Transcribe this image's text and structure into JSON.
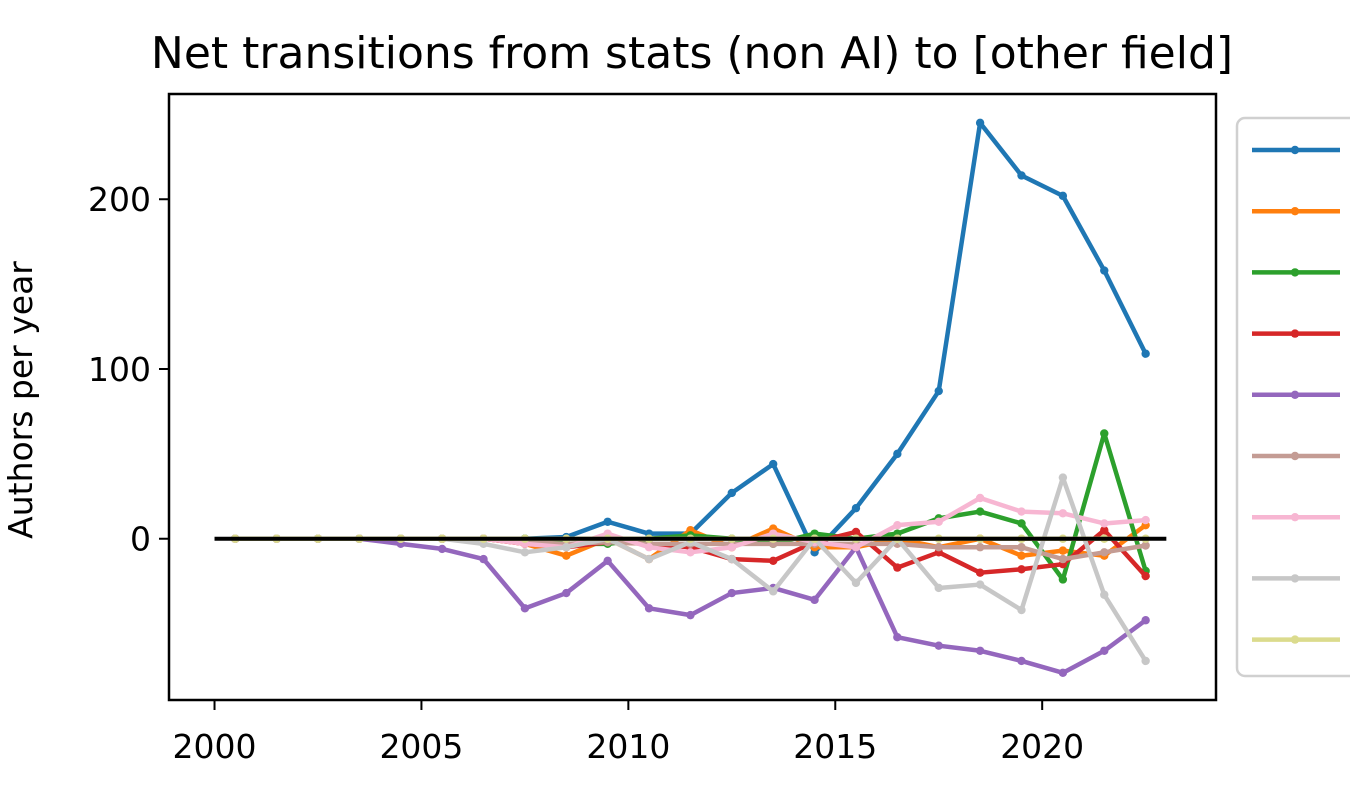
{
  "chart_data": {
    "type": "line",
    "title": "Net transitions from stats (non AI) to [other field]",
    "xlabel": "",
    "ylabel": "Authors per year",
    "xlim": [
      1998.9,
      2024.2
    ],
    "ylim": [
      -95,
      262
    ],
    "xticks": [
      2000,
      2005,
      2010,
      2015,
      2020
    ],
    "yticks": [
      0,
      100,
      200
    ],
    "grid": false,
    "legend": "right",
    "x": [
      2000.5,
      2001.5,
      2002.5,
      2003.5,
      2004.5,
      2005.5,
      2006.5,
      2007.5,
      2008.5,
      2009.5,
      2010.5,
      2011.5,
      2012.5,
      2013.5,
      2014.5,
      2015.5,
      2016.5,
      2017.5,
      2018.5,
      2019.5,
      2020.5,
      2021.5,
      2022.5
    ],
    "zero_line": {
      "x_start": 2000,
      "x_end": 2023,
      "y": 0,
      "color": "#000000"
    },
    "series": [
      {
        "name": "",
        "color": "#1f77b4",
        "values": [
          0,
          0,
          0,
          0,
          0,
          0,
          0,
          0,
          1,
          10,
          3,
          3,
          27,
          44,
          -8,
          18,
          50,
          87,
          245,
          214,
          202,
          158,
          109
        ]
      },
      {
        "name": "",
        "color": "#ff7f0e",
        "values": [
          0,
          0,
          0,
          0,
          0,
          0,
          0,
          -3,
          -10,
          0,
          -12,
          5,
          -5,
          6,
          -5,
          -5,
          0,
          -5,
          0,
          -10,
          -7,
          -10,
          8
        ]
      },
      {
        "name": "",
        "color": "#2ca02c",
        "values": [
          0,
          0,
          0,
          0,
          0,
          0,
          0,
          0,
          -3,
          -3,
          0,
          2,
          0,
          -3,
          3,
          0,
          3,
          12,
          16,
          9,
          -24,
          62,
          -19
        ]
      },
      {
        "name": "",
        "color": "#d62728",
        "values": [
          0,
          0,
          0,
          0,
          0,
          0,
          0,
          -3,
          -5,
          -2,
          -3,
          -5,
          -12,
          -13,
          -2,
          4,
          -17,
          -8,
          -20,
          -18,
          -15,
          5,
          -22
        ]
      },
      {
        "name": "",
        "color": "#9467bd",
        "values": [
          0,
          0,
          0,
          0,
          -3,
          -6,
          -12,
          -41,
          -32,
          -13,
          -41,
          -45,
          -32,
          -29,
          -36,
          -5,
          -58,
          -63,
          -66,
          -72,
          -79,
          -66,
          -48
        ]
      },
      {
        "name": "",
        "color": "#c49c94",
        "values": [
          0,
          0,
          0,
          0,
          0,
          0,
          0,
          -2,
          -3,
          -2,
          -3,
          -3,
          -3,
          -3,
          -3,
          -3,
          -3,
          -5,
          -5,
          -5,
          -12,
          -8,
          -4
        ]
      },
      {
        "name": "",
        "color": "#f7b6d2",
        "values": [
          0,
          0,
          0,
          0,
          0,
          0,
          0,
          -3,
          -5,
          3,
          -5,
          -8,
          -5,
          3,
          -2,
          -5,
          8,
          10,
          24,
          16,
          15,
          9,
          11
        ]
      },
      {
        "name": "",
        "color": "#c7c7c7",
        "values": [
          0,
          0,
          0,
          0,
          0,
          0,
          -3,
          -8,
          -5,
          0,
          -12,
          -2,
          -12,
          -31,
          0,
          -26,
          0,
          -29,
          -27,
          -42,
          36,
          -33,
          -72
        ]
      },
      {
        "name": "",
        "color": "#dbdb8d",
        "values": [
          0,
          0,
          0,
          0,
          0,
          0,
          0,
          0,
          0,
          0,
          0,
          0,
          0,
          0,
          0,
          0,
          0,
          0,
          0,
          0,
          0,
          0,
          0
        ]
      }
    ]
  }
}
